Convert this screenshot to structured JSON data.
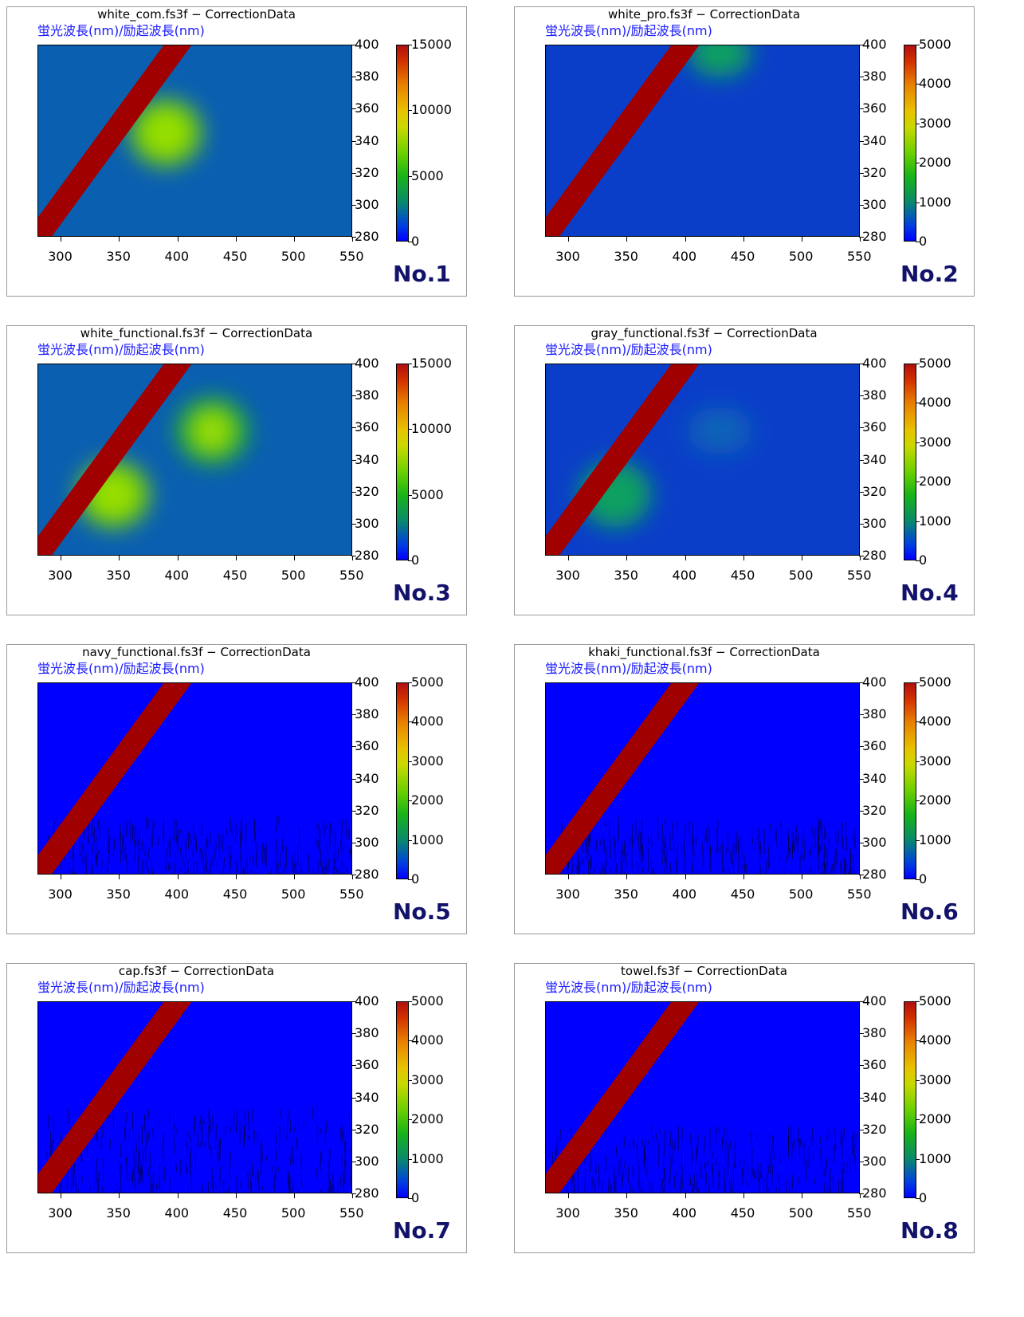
{
  "common": {
    "subtitle": "蛍光波長(nm)/励起波長(nm)",
    "x_ticks": [
      "300",
      "350",
      "400",
      "450",
      "500",
      "550"
    ],
    "y_ticks": [
      "400",
      "380",
      "360",
      "340",
      "320",
      "300",
      "280"
    ]
  },
  "colors": {
    "background_blue": "#0000ff",
    "scatter_red": "#a00000",
    "subtitle_blue": "#1a1aff",
    "label_navy": "#12126a"
  },
  "panels": [
    {
      "title": "white_com.fs3f − CorrectionData",
      "label": "No.1",
      "cbar_ticks": [
        "15000",
        "10000",
        "5000",
        "0"
      ]
    },
    {
      "title": "white_pro.fs3f − CorrectionData",
      "label": "No.2",
      "cbar_ticks": [
        "5000",
        "4000",
        "3000",
        "2000",
        "1000",
        "0"
      ]
    },
    {
      "title": "white_functional.fs3f − CorrectionData",
      "label": "No.3",
      "cbar_ticks": [
        "15000",
        "10000",
        "5000",
        "0"
      ]
    },
    {
      "title": "gray_functional.fs3f − CorrectionData",
      "label": "No.4",
      "cbar_ticks": [
        "5000",
        "4000",
        "3000",
        "2000",
        "1000",
        "0"
      ]
    },
    {
      "title": "navy_functional.fs3f − CorrectionData",
      "label": "No.5",
      "cbar_ticks": [
        "5000",
        "4000",
        "3000",
        "2000",
        "1000",
        "0"
      ]
    },
    {
      "title": "khaki_functional.fs3f − CorrectionData",
      "label": "No.6",
      "cbar_ticks": [
        "5000",
        "4000",
        "3000",
        "2000",
        "1000",
        "0"
      ]
    },
    {
      "title": "cap.fs3f − CorrectionData",
      "label": "No.7",
      "cbar_ticks": [
        "5000",
        "4000",
        "3000",
        "2000",
        "1000",
        "0"
      ]
    },
    {
      "title": "towel.fs3f − CorrectionData",
      "label": "No.8",
      "cbar_ticks": [
        "5000",
        "4000",
        "3000",
        "2000",
        "1000",
        "0"
      ]
    }
  ],
  "chart_data": [
    {
      "type": "heatmap",
      "title": "white_com.fs3f − CorrectionData",
      "subtitle": "蛍光波長(nm)/励起波長(nm)",
      "xlim": [
        280,
        550
      ],
      "ylim": [
        280,
        400
      ],
      "zlim": [
        0,
        15000
      ],
      "colorbar_ticks": [
        15000,
        10000,
        5000,
        0
      ],
      "features": [
        {
          "kind": "rayleigh_scatter_band",
          "x_eq_y": true
        },
        {
          "kind": "peak",
          "x": 390,
          "y": 345,
          "z": 9000
        }
      ]
    },
    {
      "type": "heatmap",
      "title": "white_pro.fs3f − CorrectionData",
      "subtitle": "蛍光波長(nm)/励起波長(nm)",
      "xlim": [
        280,
        550
      ],
      "ylim": [
        280,
        400
      ],
      "zlim": [
        0,
        5000
      ],
      "colorbar_ticks": [
        5000,
        4000,
        3000,
        2000,
        1000,
        0
      ],
      "features": [
        {
          "kind": "rayleigh_scatter_band",
          "x_eq_y": true
        },
        {
          "kind": "weak_region",
          "x": 430,
          "y": 395,
          "z": 1200
        }
      ]
    },
    {
      "type": "heatmap",
      "title": "white_functional.fs3f − CorrectionData",
      "subtitle": "蛍光波長(nm)/励起波長(nm)",
      "xlim": [
        280,
        550
      ],
      "ylim": [
        280,
        400
      ],
      "zlim": [
        0,
        15000
      ],
      "colorbar_ticks": [
        15000,
        10000,
        5000,
        0
      ],
      "features": [
        {
          "kind": "rayleigh_scatter_band",
          "x_eq_y": true
        },
        {
          "kind": "peak",
          "x": 430,
          "y": 358,
          "z": 7500
        },
        {
          "kind": "peak",
          "x": 345,
          "y": 318,
          "z": 8500
        }
      ]
    },
    {
      "type": "heatmap",
      "title": "gray_functional.fs3f − CorrectionData",
      "subtitle": "蛍光波長(nm)/励起波長(nm)",
      "xlim": [
        280,
        550
      ],
      "ylim": [
        280,
        400
      ],
      "zlim": [
        0,
        5000
      ],
      "colorbar_ticks": [
        5000,
        4000,
        3000,
        2000,
        1000,
        0
      ],
      "features": [
        {
          "kind": "rayleigh_scatter_band",
          "x_eq_y": true
        },
        {
          "kind": "peak",
          "x": 340,
          "y": 318,
          "z": 1500
        },
        {
          "kind": "weak_region",
          "x": 430,
          "y": 358,
          "z": 800
        }
      ]
    },
    {
      "type": "heatmap",
      "title": "navy_functional.fs3f − CorrectionData",
      "subtitle": "蛍光波長(nm)/励起波長(nm)",
      "xlim": [
        280,
        550
      ],
      "ylim": [
        280,
        400
      ],
      "zlim": [
        0,
        5000
      ],
      "colorbar_ticks": [
        5000,
        4000,
        3000,
        2000,
        1000,
        0
      ],
      "features": [
        {
          "kind": "rayleigh_scatter_band",
          "x_eq_y": true
        }
      ]
    },
    {
      "type": "heatmap",
      "title": "khaki_functional.fs3f − CorrectionData",
      "subtitle": "蛍光波長(nm)/励起波長(nm)",
      "xlim": [
        280,
        550
      ],
      "ylim": [
        280,
        400
      ],
      "zlim": [
        0,
        5000
      ],
      "colorbar_ticks": [
        5000,
        4000,
        3000,
        2000,
        1000,
        0
      ],
      "features": [
        {
          "kind": "rayleigh_scatter_band",
          "x_eq_y": true
        }
      ]
    },
    {
      "type": "heatmap",
      "title": "cap.fs3f − CorrectionData",
      "subtitle": "蛍光波長(nm)/励起波長(nm)",
      "xlim": [
        280,
        550
      ],
      "ylim": [
        280,
        400
      ],
      "zlim": [
        0,
        5000
      ],
      "colorbar_ticks": [
        5000,
        4000,
        3000,
        2000,
        1000,
        0
      ],
      "features": [
        {
          "kind": "rayleigh_scatter_band",
          "x_eq_y": true
        }
      ]
    },
    {
      "type": "heatmap",
      "title": "towel.fs3f − CorrectionData",
      "subtitle": "蛍光波長(nm)/励起波長(nm)",
      "xlim": [
        280,
        550
      ],
      "ylim": [
        280,
        400
      ],
      "zlim": [
        0,
        5000
      ],
      "colorbar_ticks": [
        5000,
        4000,
        3000,
        2000,
        1000,
        0
      ],
      "features": [
        {
          "kind": "rayleigh_scatter_band",
          "x_eq_y": true
        }
      ]
    }
  ]
}
